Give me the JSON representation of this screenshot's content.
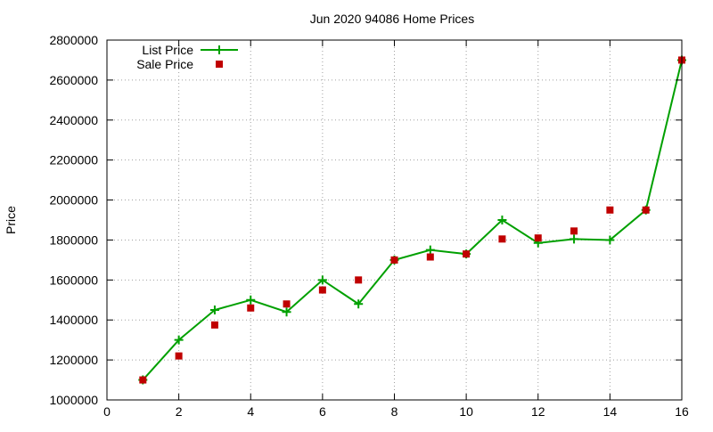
{
  "chart_data": {
    "type": "line",
    "title": "Jun 2020 94086 Home Prices",
    "xlabel": "",
    "ylabel": "Price",
    "xlim": [
      0,
      16
    ],
    "ylim": [
      1000000,
      2800000
    ],
    "xticks": [
      0,
      2,
      4,
      6,
      8,
      10,
      12,
      14,
      16
    ],
    "yticks": [
      1000000,
      1200000,
      1400000,
      1600000,
      1800000,
      2000000,
      2200000,
      2400000,
      2600000,
      2800000
    ],
    "grid": true,
    "legend": "top-left",
    "series": [
      {
        "name": "List Price",
        "style": "line+marker",
        "marker": "plus",
        "color": "#00a000",
        "x": [
          1,
          2,
          3,
          4,
          5,
          6,
          7,
          8,
          9,
          10,
          11,
          12,
          13,
          14,
          15,
          16
        ],
        "values": [
          1100000,
          1300000,
          1450000,
          1500000,
          1440000,
          1600000,
          1480000,
          1700000,
          1750000,
          1730000,
          1900000,
          1785000,
          1805000,
          1800000,
          1950000,
          2700000
        ]
      },
      {
        "name": "Sale Price",
        "style": "marker",
        "marker": "square",
        "color": "#c00000",
        "x": [
          1,
          2,
          3,
          4,
          5,
          6,
          7,
          8,
          9,
          10,
          11,
          12,
          13,
          14,
          15,
          16
        ],
        "values": [
          1100000,
          1220000,
          1375000,
          1460000,
          1480000,
          1550000,
          1600000,
          1700000,
          1715000,
          1730000,
          1805000,
          1810000,
          1845000,
          1950000,
          1950000,
          2700000
        ]
      }
    ]
  }
}
